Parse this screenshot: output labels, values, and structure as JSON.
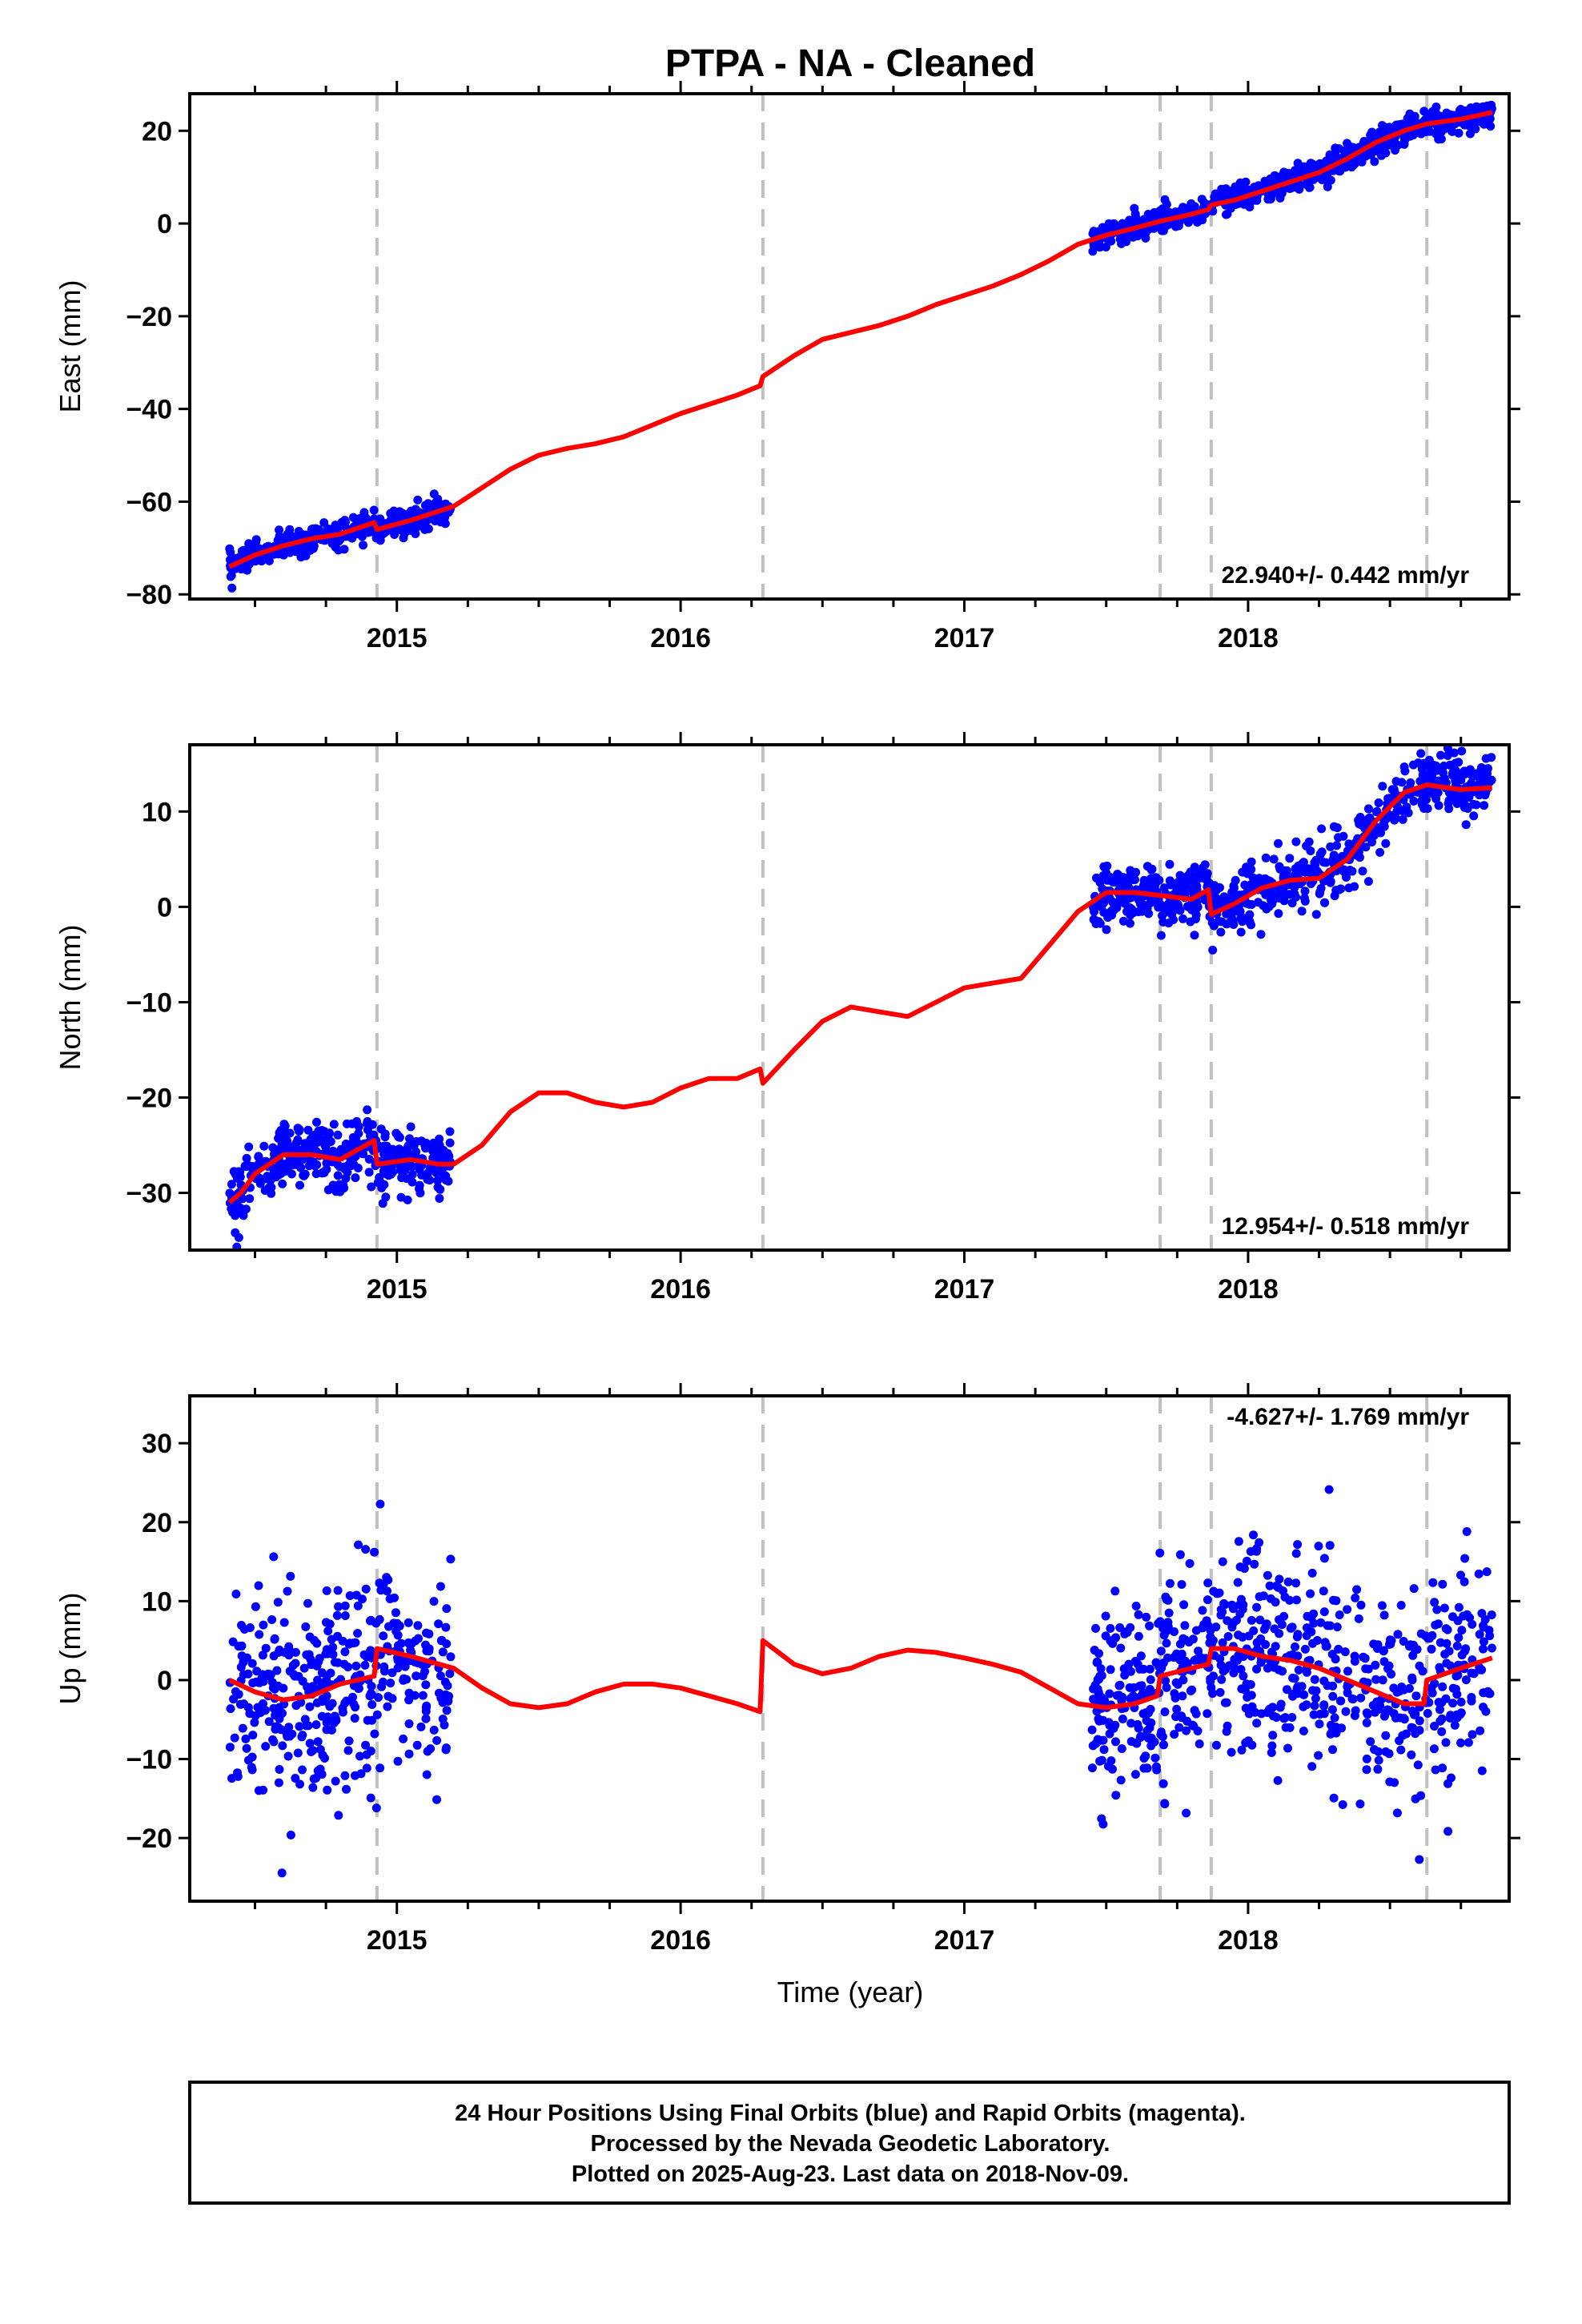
{
  "chart_data": {
    "title": "PTPA  - NA - Cleaned",
    "type": "scatter",
    "x_label": "Time (year)",
    "xlim": [
      2014.27,
      2018.92
    ],
    "x_tick_labels": [
      "2015",
      "2016",
      "2017",
      "2018"
    ],
    "x_tick_values": [
      2015,
      2016,
      2017,
      2018
    ],
    "equipment_changes": [
      2014.93,
      2016.29,
      2017.69,
      2017.87,
      2018.63
    ],
    "data_segments": [
      [
        2014.41,
        2015.19
      ],
      [
        2017.45,
        2018.86
      ]
    ],
    "colors": {
      "observations": "#0000ff",
      "model": "#ff0000",
      "change_lines": "#c0c0c0",
      "frame": "#000000"
    },
    "footer": {
      "lines": [
        "24 Hour Positions Using Final Orbits (blue) and Rapid Orbits (magenta).",
        "Processed by the Nevada Geodetic Laboratory.",
        "Plotted on 2025-Aug-23. Last data on 2018-Nov-09."
      ]
    },
    "panels": [
      {
        "id": "east",
        "y_label": "East (mm)",
        "ylim": [
          -81,
          28
        ],
        "y_ticks": [
          20,
          0,
          -20,
          -40,
          -60,
          -80
        ],
        "y_tick_labels": [
          "20",
          "0",
          "−20",
          "−40",
          "−60",
          "−80"
        ],
        "rate_text": "22.940+/- 0.442 mm/yr",
        "rate_position": "bottom-right",
        "model_curve": [
          [
            2014.41,
            -74
          ],
          [
            2014.5,
            -71.5
          ],
          [
            2014.6,
            -69.5
          ],
          [
            2014.7,
            -68
          ],
          [
            2014.8,
            -67
          ],
          [
            2014.92,
            -64.5
          ],
          [
            2014.93,
            -66
          ],
          [
            2015.05,
            -64
          ],
          [
            2015.15,
            -62
          ],
          [
            2015.2,
            -61
          ],
          [
            2015.3,
            -57
          ],
          [
            2015.4,
            -53
          ],
          [
            2015.5,
            -50
          ],
          [
            2015.6,
            -48.5
          ],
          [
            2015.7,
            -47.5
          ],
          [
            2015.8,
            -46
          ],
          [
            2015.9,
            -43.5
          ],
          [
            2016.0,
            -41
          ],
          [
            2016.1,
            -39
          ],
          [
            2016.2,
            -37
          ],
          [
            2016.28,
            -35
          ],
          [
            2016.29,
            -33
          ],
          [
            2016.4,
            -28.5
          ],
          [
            2016.5,
            -25
          ],
          [
            2016.6,
            -23.5
          ],
          [
            2016.7,
            -22
          ],
          [
            2016.8,
            -20
          ],
          [
            2016.9,
            -17.5
          ],
          [
            2017.0,
            -15.5
          ],
          [
            2017.1,
            -13.5
          ],
          [
            2017.2,
            -11
          ],
          [
            2017.3,
            -8
          ],
          [
            2017.4,
            -4.5
          ],
          [
            2017.5,
            -2.5
          ],
          [
            2017.6,
            -1
          ],
          [
            2017.69,
            0.5
          ],
          [
            2017.8,
            2
          ],
          [
            2017.86,
            3
          ],
          [
            2017.87,
            4
          ],
          [
            2017.95,
            5
          ],
          [
            2018.05,
            7
          ],
          [
            2018.15,
            9
          ],
          [
            2018.25,
            11
          ],
          [
            2018.35,
            14
          ],
          [
            2018.45,
            17.5
          ],
          [
            2018.55,
            20
          ],
          [
            2018.63,
            21.5
          ],
          [
            2018.75,
            22.5
          ],
          [
            2018.86,
            24
          ]
        ],
        "noise": 1.4
      },
      {
        "id": "north",
        "y_label": "North (mm)",
        "ylim": [
          -36,
          17
        ],
        "y_ticks": [
          10,
          0,
          -10,
          -20,
          -30
        ],
        "y_tick_labels": [
          "10",
          "0",
          "−10",
          "−20",
          "−30"
        ],
        "rate_text": "12.954+/- 0.518 mm/yr",
        "rate_position": "bottom-right",
        "model_curve": [
          [
            2014.41,
            -31
          ],
          [
            2014.45,
            -30
          ],
          [
            2014.5,
            -28
          ],
          [
            2014.6,
            -26
          ],
          [
            2014.7,
            -26
          ],
          [
            2014.8,
            -26.5
          ],
          [
            2014.92,
            -24.5
          ],
          [
            2014.93,
            -27
          ],
          [
            2015.05,
            -26.5
          ],
          [
            2015.15,
            -27
          ],
          [
            2015.2,
            -27
          ],
          [
            2015.3,
            -25
          ],
          [
            2015.4,
            -21.5
          ],
          [
            2015.5,
            -19.5
          ],
          [
            2015.6,
            -19.5
          ],
          [
            2015.7,
            -20.5
          ],
          [
            2015.8,
            -21
          ],
          [
            2015.9,
            -20.5
          ],
          [
            2016.0,
            -19
          ],
          [
            2016.1,
            -18
          ],
          [
            2016.2,
            -18
          ],
          [
            2016.28,
            -17
          ],
          [
            2016.29,
            -18.5
          ],
          [
            2016.4,
            -15
          ],
          [
            2016.5,
            -12
          ],
          [
            2016.6,
            -10.5
          ],
          [
            2016.7,
            -11
          ],
          [
            2016.8,
            -11.5
          ],
          [
            2016.9,
            -10
          ],
          [
            2017.0,
            -8.5
          ],
          [
            2017.1,
            -8
          ],
          [
            2017.2,
            -7.5
          ],
          [
            2017.3,
            -4
          ],
          [
            2017.4,
            -0.5
          ],
          [
            2017.5,
            1.5
          ],
          [
            2017.6,
            1.5
          ],
          [
            2017.69,
            1.2
          ],
          [
            2017.8,
            0.8
          ],
          [
            2017.86,
            1.8
          ],
          [
            2017.87,
            -0.8
          ],
          [
            2017.95,
            0.3
          ],
          [
            2018.05,
            2
          ],
          [
            2018.15,
            2.8
          ],
          [
            2018.25,
            3
          ],
          [
            2018.35,
            5
          ],
          [
            2018.45,
            9
          ],
          [
            2018.55,
            12
          ],
          [
            2018.63,
            12.8
          ],
          [
            2018.75,
            12.3
          ],
          [
            2018.86,
            12.5
          ]
        ],
        "noise": 1.6
      },
      {
        "id": "up",
        "y_label": "Up (mm)",
        "ylim": [
          -28,
          36
        ],
        "y_ticks": [
          30,
          20,
          10,
          0,
          -10,
          -20
        ],
        "y_tick_labels": [
          "30",
          "20",
          "10",
          "0",
          "−10",
          "−20"
        ],
        "rate_text": "-4.627+/- 1.769 mm/yr",
        "rate_position": "top-right",
        "model_curve": [
          [
            2014.41,
            0
          ],
          [
            2014.5,
            -1.5
          ],
          [
            2014.6,
            -2.5
          ],
          [
            2014.7,
            -2
          ],
          [
            2014.8,
            -0.5
          ],
          [
            2014.92,
            0.5
          ],
          [
            2014.93,
            4
          ],
          [
            2015.05,
            3
          ],
          [
            2015.15,
            2
          ],
          [
            2015.2,
            1.5
          ],
          [
            2015.3,
            -1
          ],
          [
            2015.4,
            -3
          ],
          [
            2015.5,
            -3.5
          ],
          [
            2015.6,
            -3
          ],
          [
            2015.7,
            -1.5
          ],
          [
            2015.8,
            -0.5
          ],
          [
            2015.9,
            -0.5
          ],
          [
            2016.0,
            -1
          ],
          [
            2016.1,
            -2
          ],
          [
            2016.2,
            -3
          ],
          [
            2016.28,
            -4
          ],
          [
            2016.29,
            5
          ],
          [
            2016.4,
            2
          ],
          [
            2016.5,
            0.8
          ],
          [
            2016.6,
            1.5
          ],
          [
            2016.7,
            3
          ],
          [
            2016.8,
            3.8
          ],
          [
            2016.9,
            3.5
          ],
          [
            2017.0,
            2.8
          ],
          [
            2017.1,
            2
          ],
          [
            2017.2,
            1
          ],
          [
            2017.3,
            -1
          ],
          [
            2017.4,
            -3
          ],
          [
            2017.5,
            -3.5
          ],
          [
            2017.6,
            -3
          ],
          [
            2017.68,
            -2
          ],
          [
            2017.69,
            0.5
          ],
          [
            2017.8,
            1.5
          ],
          [
            2017.86,
            2
          ],
          [
            2017.87,
            4
          ],
          [
            2017.95,
            4
          ],
          [
            2018.05,
            3
          ],
          [
            2018.15,
            2.5
          ],
          [
            2018.25,
            1.5
          ],
          [
            2018.35,
            0
          ],
          [
            2018.45,
            -1.5
          ],
          [
            2018.55,
            -3
          ],
          [
            2018.62,
            -3
          ],
          [
            2018.63,
            0
          ],
          [
            2018.75,
            1.5
          ],
          [
            2018.86,
            2.8
          ]
        ],
        "noise": 6.5
      }
    ]
  }
}
